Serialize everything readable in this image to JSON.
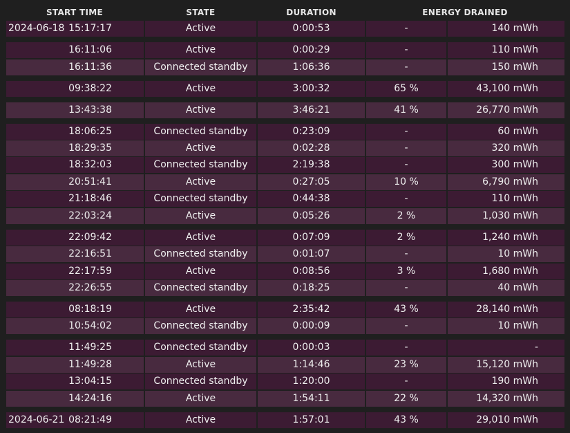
{
  "headers": {
    "start_time": "START TIME",
    "state": "STATE",
    "duration": "DURATION",
    "energy_drained": "ENERGY DRAINED"
  },
  "rows": [
    {
      "date": "2024-06-18",
      "time": "15:17:17",
      "state": "Active",
      "duration": "0:00:53",
      "percent": "-",
      "energy": "140 mWh"
    },
    {
      "date": "",
      "time": "16:11:06",
      "state": "Active",
      "duration": "0:00:29",
      "percent": "-",
      "energy": "110 mWh"
    },
    {
      "date": "",
      "time": "16:11:36",
      "state": "Connected standby",
      "duration": "1:06:36",
      "percent": "-",
      "energy": "150 mWh"
    },
    {
      "date": "",
      "time": "09:38:22",
      "state": "Active",
      "duration": "3:00:32",
      "percent": "65 %",
      "energy": "43,100 mWh"
    },
    {
      "date": "",
      "time": "13:43:38",
      "state": "Active",
      "duration": "3:46:21",
      "percent": "41 %",
      "energy": "26,770 mWh"
    },
    {
      "date": "",
      "time": "18:06:25",
      "state": "Connected standby",
      "duration": "0:23:09",
      "percent": "-",
      "energy": "60 mWh"
    },
    {
      "date": "",
      "time": "18:29:35",
      "state": "Active",
      "duration": "0:02:28",
      "percent": "-",
      "energy": "320 mWh"
    },
    {
      "date": "",
      "time": "18:32:03",
      "state": "Connected standby",
      "duration": "2:19:38",
      "percent": "-",
      "energy": "300 mWh"
    },
    {
      "date": "",
      "time": "20:51:41",
      "state": "Active",
      "duration": "0:27:05",
      "percent": "10 %",
      "energy": "6,790 mWh"
    },
    {
      "date": "",
      "time": "21:18:46",
      "state": "Connected standby",
      "duration": "0:44:38",
      "percent": "-",
      "energy": "110 mWh"
    },
    {
      "date": "",
      "time": "22:03:24",
      "state": "Active",
      "duration": "0:05:26",
      "percent": "2 %",
      "energy": "1,030 mWh"
    },
    {
      "date": "",
      "time": "22:09:42",
      "state": "Active",
      "duration": "0:07:09",
      "percent": "2 %",
      "energy": "1,240 mWh"
    },
    {
      "date": "",
      "time": "22:16:51",
      "state": "Connected standby",
      "duration": "0:01:07",
      "percent": "-",
      "energy": "10 mWh"
    },
    {
      "date": "",
      "time": "22:17:59",
      "state": "Active",
      "duration": "0:08:56",
      "percent": "3 %",
      "energy": "1,680 mWh"
    },
    {
      "date": "",
      "time": "22:26:55",
      "state": "Connected standby",
      "duration": "0:18:25",
      "percent": "-",
      "energy": "40 mWh"
    },
    {
      "date": "",
      "time": "08:18:19",
      "state": "Active",
      "duration": "2:35:42",
      "percent": "43 %",
      "energy": "28,140 mWh"
    },
    {
      "date": "",
      "time": "10:54:02",
      "state": "Connected standby",
      "duration": "0:00:09",
      "percent": "-",
      "energy": "10 mWh"
    },
    {
      "date": "",
      "time": "11:49:25",
      "state": "Connected standby",
      "duration": "0:00:03",
      "percent": "-",
      "energy": "-"
    },
    {
      "date": "",
      "time": "11:49:28",
      "state": "Active",
      "duration": "1:14:46",
      "percent": "23 %",
      "energy": "15,120 mWh"
    },
    {
      "date": "",
      "time": "13:04:15",
      "state": "Connected standby",
      "duration": "1:20:00",
      "percent": "-",
      "energy": "190 mWh"
    },
    {
      "date": "",
      "time": "14:24:16",
      "state": "Active",
      "duration": "1:54:11",
      "percent": "22 %",
      "energy": "14,320 mWh"
    },
    {
      "date": "2024-06-21",
      "time": "08:21:49",
      "state": "Active",
      "duration": "1:57:01",
      "percent": "43 %",
      "energy": "29,010 mWh"
    }
  ]
}
